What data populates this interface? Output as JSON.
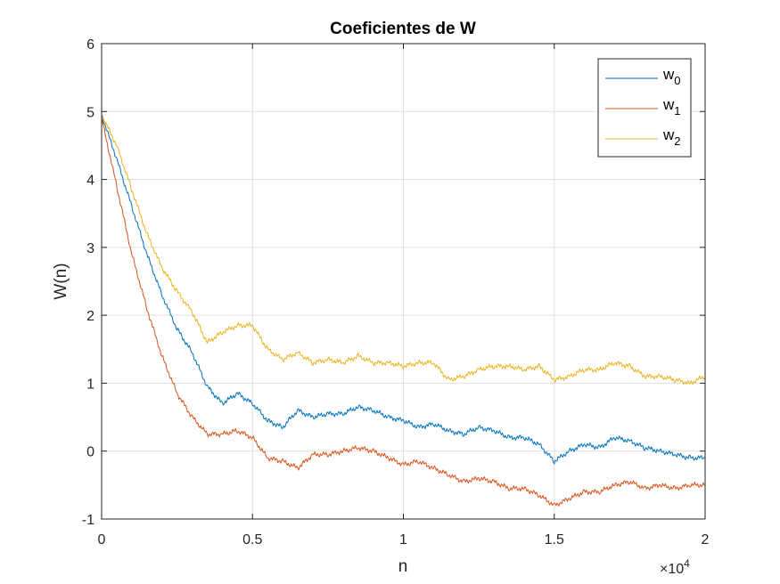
{
  "chart_data": {
    "type": "line",
    "title": "Coeficientes de W",
    "xlabel": "n",
    "ylabel": "W(n)",
    "x_exponent_label": "×10",
    "x_exponent_power": "4",
    "xlim": [
      0,
      20000
    ],
    "ylim": [
      -1,
      6
    ],
    "x_tick_values": [
      0,
      5000,
      10000,
      15000,
      20000
    ],
    "x_tick_labels": [
      "0",
      "0.5",
      "1",
      "1.5",
      "2"
    ],
    "y_ticks": [
      -1,
      0,
      1,
      2,
      3,
      4,
      5,
      6
    ],
    "y_tick_labels": [
      "-1",
      "0",
      "1",
      "2",
      "3",
      "4",
      "5",
      "6"
    ],
    "grid": true,
    "legend_position": "top-right",
    "x": [
      0,
      500,
      1000,
      1500,
      2000,
      2500,
      3000,
      3500,
      4000,
      4500,
      5000,
      5500,
      6000,
      6500,
      7000,
      7500,
      8000,
      8500,
      9000,
      9500,
      10000,
      10500,
      11000,
      11500,
      12000,
      12500,
      13000,
      13500,
      14000,
      14500,
      15000,
      15500,
      16000,
      16500,
      17000,
      17500,
      18000,
      18500,
      19000,
      19500,
      20000
    ],
    "series": [
      {
        "name": "w",
        "subscript": "0",
        "color": "#0072BD",
        "values": [
          4.95,
          4.3,
          3.6,
          2.9,
          2.3,
          1.8,
          1.45,
          0.95,
          0.7,
          0.85,
          0.7,
          0.45,
          0.35,
          0.6,
          0.5,
          0.55,
          0.55,
          0.65,
          0.6,
          0.5,
          0.45,
          0.35,
          0.4,
          0.3,
          0.25,
          0.35,
          0.3,
          0.2,
          0.2,
          0.1,
          -0.15,
          0.0,
          0.1,
          0.05,
          0.2,
          0.15,
          0.05,
          0.0,
          -0.05,
          -0.1,
          -0.1
        ]
      },
      {
        "name": "w",
        "subscript": "1",
        "color": "#D95319",
        "values": [
          4.9,
          3.9,
          2.9,
          2.1,
          1.4,
          0.85,
          0.5,
          0.25,
          0.25,
          0.3,
          0.2,
          -0.1,
          -0.15,
          -0.25,
          -0.05,
          -0.05,
          0.0,
          0.05,
          0.0,
          -0.1,
          -0.2,
          -0.15,
          -0.25,
          -0.35,
          -0.45,
          -0.4,
          -0.45,
          -0.55,
          -0.55,
          -0.65,
          -0.8,
          -0.7,
          -0.6,
          -0.6,
          -0.5,
          -0.45,
          -0.55,
          -0.5,
          -0.55,
          -0.5,
          -0.5
        ]
      },
      {
        "name": "w",
        "subscript": "2",
        "color": "#EDB120",
        "values": [
          4.95,
          4.5,
          3.85,
          3.2,
          2.7,
          2.35,
          2.05,
          1.6,
          1.75,
          1.85,
          1.85,
          1.5,
          1.35,
          1.45,
          1.3,
          1.35,
          1.3,
          1.4,
          1.3,
          1.3,
          1.25,
          1.3,
          1.3,
          1.05,
          1.1,
          1.2,
          1.25,
          1.25,
          1.2,
          1.25,
          1.05,
          1.1,
          1.2,
          1.2,
          1.3,
          1.25,
          1.1,
          1.1,
          1.05,
          1.0,
          1.1
        ]
      }
    ]
  }
}
